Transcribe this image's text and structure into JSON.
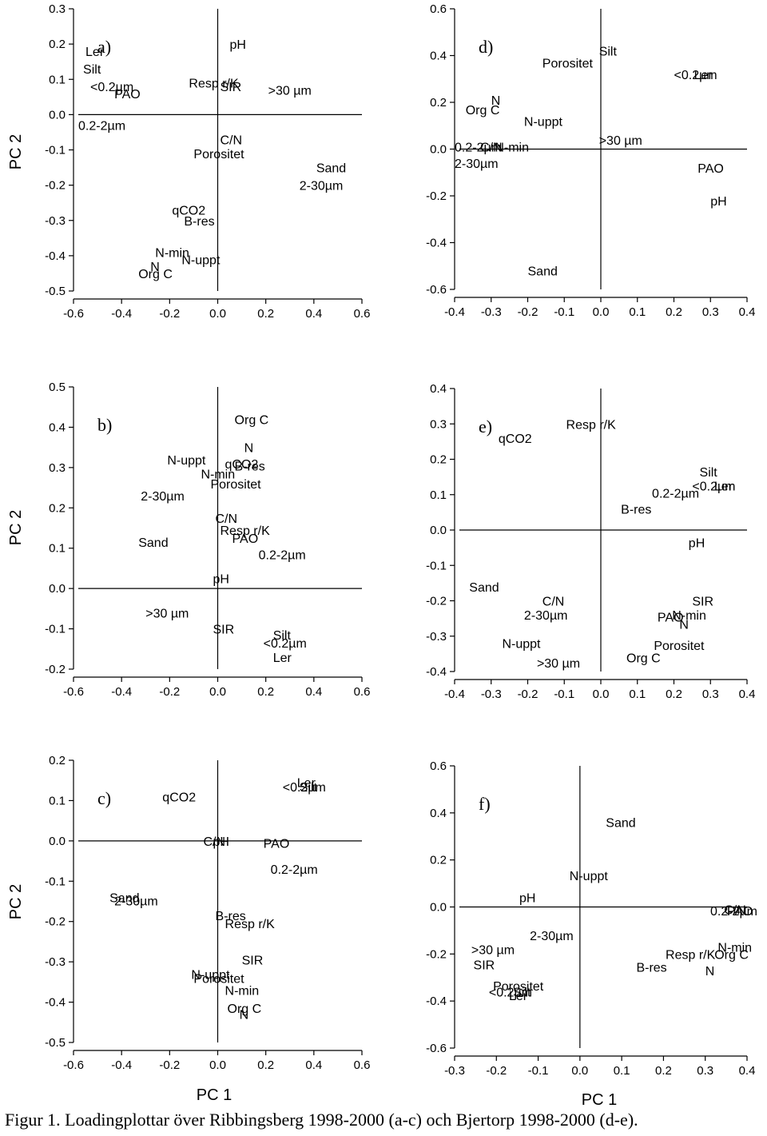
{
  "caption": "Figur 1. Loadingplottar över Ribbingsberg 1998-2000 (a-c) och Bjertorp 1998-2000 (d-e).",
  "axis_titles": {
    "y": "PC 2",
    "x": "PC 1"
  },
  "chart_data": [
    {
      "panel": "a)",
      "type": "scatter",
      "xlim": [
        -0.6,
        0.6
      ],
      "ylim": [
        -0.5,
        0.3
      ],
      "xticks": [
        "-0.6",
        "-0.4",
        "-0.2",
        "0.0",
        "0.2",
        "0.4",
        "0.6"
      ],
      "yticks": [
        "0.3",
        "0.2",
        "0.1",
        "0.0",
        "-0.1",
        "-0.2",
        "-0.3",
        "-0.4",
        "-0.5"
      ],
      "points": [
        {
          "label": "Ler",
          "x": -0.55,
          "y": 0.18
        },
        {
          "label": "Silt",
          "x": -0.56,
          "y": 0.13
        },
        {
          "label": "<0.2µm",
          "x": -0.53,
          "y": 0.08
        },
        {
          "label": "PAO",
          "x": -0.43,
          "y": 0.06
        },
        {
          "label": "pH",
          "x": 0.05,
          "y": 0.2
        },
        {
          "label": "Resp r/K",
          "x": -0.12,
          "y": 0.09
        },
        {
          "label": "SIR",
          "x": 0.01,
          "y": 0.08
        },
        {
          "label": ">30 µm",
          "x": 0.21,
          "y": 0.07
        },
        {
          "label": "0.2-2µm",
          "x": -0.58,
          "y": -0.03
        },
        {
          "label": "C/N",
          "x": 0.01,
          "y": -0.07
        },
        {
          "label": "Porositet",
          "x": -0.1,
          "y": -0.11
        },
        {
          "label": "Sand",
          "x": 0.41,
          "y": -0.15
        },
        {
          "label": "2-30µm",
          "x": 0.34,
          "y": -0.2
        },
        {
          "label": "qCO2",
          "x": -0.19,
          "y": -0.27
        },
        {
          "label": "B-res",
          "x": -0.14,
          "y": -0.3
        },
        {
          "label": "N-min",
          "x": -0.26,
          "y": -0.39
        },
        {
          "label": "N-uppt",
          "x": -0.15,
          "y": -0.41
        },
        {
          "label": "N",
          "x": -0.28,
          "y": -0.43
        },
        {
          "label": "Org C",
          "x": -0.33,
          "y": -0.45
        }
      ]
    },
    {
      "panel": "d)",
      "type": "scatter",
      "xlim": [
        -0.4,
        0.4
      ],
      "ylim": [
        -0.6,
        0.6
      ],
      "xticks": [
        "-0.4",
        "-0.3",
        "-0.2",
        "-0.1",
        "0.0",
        "0.1",
        "0.2",
        "0.3",
        "0.4"
      ],
      "yticks": [
        "0.6",
        "0.4",
        "0.2",
        "0.0",
        "-0.2",
        "-0.4",
        "-0.6"
      ],
      "points": [
        {
          "label": "Silt",
          "x": -0.005,
          "y": 0.42
        },
        {
          "label": "Porositet",
          "x": -0.16,
          "y": 0.37
        },
        {
          "label": "<0.2µm",
          "x": 0.2,
          "y": 0.32
        },
        {
          "label": "Ler",
          "x": 0.255,
          "y": 0.32
        },
        {
          "label": "N",
          "x": -0.3,
          "y": 0.21
        },
        {
          "label": "Org C",
          "x": -0.37,
          "y": 0.17
        },
        {
          "label": "N-uppt",
          "x": -0.21,
          "y": 0.12
        },
        {
          "label": ">30 µm",
          "x": -0.005,
          "y": 0.04
        },
        {
          "label": "0.2-2µm",
          "x": -0.4,
          "y": 0.01
        },
        {
          "label": "C/N",
          "x": -0.33,
          "y": 0.01
        },
        {
          "label": "N-min",
          "x": -0.29,
          "y": 0.01
        },
        {
          "label": "2-30µm",
          "x": -0.4,
          "y": -0.06
        },
        {
          "label": "PAO",
          "x": 0.265,
          "y": -0.08
        },
        {
          "label": "pH",
          "x": 0.3,
          "y": -0.22
        },
        {
          "label": "Sand",
          "x": -0.2,
          "y": -0.52
        }
      ]
    },
    {
      "panel": "b)",
      "type": "scatter",
      "xlim": [
        -0.6,
        0.6
      ],
      "ylim": [
        -0.2,
        0.5
      ],
      "xticks": [
        "-0.6",
        "-0.4",
        "-0.2",
        "0.0",
        "0.2",
        "0.4",
        "0.6"
      ],
      "yticks": [
        "0.5",
        "0.4",
        "0.3",
        "0.2",
        "0.1",
        "0.0",
        "-0.1",
        "-0.2"
      ],
      "points": [
        {
          "label": "Org C",
          "x": 0.07,
          "y": 0.42
        },
        {
          "label": "N",
          "x": 0.11,
          "y": 0.35
        },
        {
          "label": "N-uppt",
          "x": -0.21,
          "y": 0.32
        },
        {
          "label": "qCO2",
          "x": 0.03,
          "y": 0.31
        },
        {
          "label": "B-res",
          "x": 0.07,
          "y": 0.305
        },
        {
          "label": "N-min",
          "x": -0.07,
          "y": 0.285
        },
        {
          "label": "Porositet",
          "x": -0.03,
          "y": 0.26
        },
        {
          "label": "2-30µm",
          "x": -0.32,
          "y": 0.23
        },
        {
          "label": "C/N",
          "x": -0.01,
          "y": 0.175
        },
        {
          "label": "Resp r/K",
          "x": 0.01,
          "y": 0.145
        },
        {
          "label": "PAO",
          "x": 0.06,
          "y": 0.125
        },
        {
          "label": "Sand",
          "x": -0.33,
          "y": 0.115
        },
        {
          "label": "0.2-2µm",
          "x": 0.17,
          "y": 0.085
        },
        {
          "label": "pH",
          "x": -0.02,
          "y": 0.025
        },
        {
          "label": ">30 µm",
          "x": -0.3,
          "y": -0.06
        },
        {
          "label": "SIR",
          "x": -0.02,
          "y": -0.1
        },
        {
          "label": "Silt",
          "x": 0.23,
          "y": -0.115
        },
        {
          "label": "<0.2µm",
          "x": 0.19,
          "y": -0.135
        },
        {
          "label": "Ler",
          "x": 0.23,
          "y": -0.17
        }
      ]
    },
    {
      "panel": "e)",
      "type": "scatter",
      "xlim": [
        -0.4,
        0.4
      ],
      "ylim": [
        -0.4,
        0.4
      ],
      "xticks": [
        "-0.4",
        "-0.3",
        "-0.2",
        "-0.1",
        "0.0",
        "0.1",
        "0.2",
        "0.3",
        "0.4"
      ],
      "yticks": [
        "0.4",
        "0.3",
        "0.2",
        "0.1",
        "0.0",
        "-0.1",
        "-0.2",
        "-0.3",
        "-0.4"
      ],
      "points": [
        {
          "label": "Resp r/K",
          "x": -0.095,
          "y": 0.3
        },
        {
          "label": "qCO2",
          "x": -0.28,
          "y": 0.26
        },
        {
          "label": "Silt",
          "x": 0.27,
          "y": 0.165
        },
        {
          "label": "<0.2µm",
          "x": 0.25,
          "y": 0.125
        },
        {
          "label": "Ler",
          "x": 0.31,
          "y": 0.125
        },
        {
          "label": "0.2-2µm",
          "x": 0.14,
          "y": 0.105
        },
        {
          "label": "B-res",
          "x": 0.055,
          "y": 0.06
        },
        {
          "label": "pH",
          "x": 0.24,
          "y": -0.035
        },
        {
          "label": "Sand",
          "x": -0.36,
          "y": -0.16
        },
        {
          "label": "C/N",
          "x": -0.16,
          "y": -0.2
        },
        {
          "label": "SIR",
          "x": 0.25,
          "y": -0.2
        },
        {
          "label": "2-30µm",
          "x": -0.21,
          "y": -0.24
        },
        {
          "label": "PAO",
          "x": 0.155,
          "y": -0.245
        },
        {
          "label": "N-min",
          "x": 0.195,
          "y": -0.24
        },
        {
          "label": "N",
          "x": 0.215,
          "y": -0.265
        },
        {
          "label": "N-uppt",
          "x": -0.27,
          "y": -0.32
        },
        {
          "label": "Porositet",
          "x": 0.145,
          "y": -0.325
        },
        {
          "label": ">30 µm",
          "x": -0.175,
          "y": -0.375
        },
        {
          "label": "Org C",
          "x": 0.07,
          "y": -0.36
        }
      ]
    },
    {
      "panel": "c)",
      "type": "scatter",
      "xlim": [
        -0.6,
        0.6
      ],
      "ylim": [
        -0.5,
        0.2
      ],
      "xticks": [
        "-0.6",
        "-0.4",
        "-0.2",
        "0.0",
        "0.2",
        "0.4",
        "0.6"
      ],
      "yticks": [
        "0.2",
        "0.1",
        "0.0",
        "-0.1",
        "-0.2",
        "-0.3",
        "-0.4",
        "-0.5"
      ],
      "points": [
        {
          "label": "qCO2",
          "x": -0.23,
          "y": 0.11
        },
        {
          "label": "Ler",
          "x": 0.33,
          "y": 0.145
        },
        {
          "label": "<0.2µm",
          "x": 0.27,
          "y": 0.135
        },
        {
          "label": "Silt",
          "x": 0.34,
          "y": 0.135
        },
        {
          "label": "C/N",
          "x": -0.06,
          "y": 0.0
        },
        {
          "label": "pH",
          "x": -0.02,
          "y": 0.0
        },
        {
          "label": "PAO",
          "x": 0.19,
          "y": -0.005
        },
        {
          "label": "0.2-2µm",
          "x": 0.22,
          "y": -0.07
        },
        {
          "label": "Sand",
          "x": -0.45,
          "y": -0.14
        },
        {
          "label": "2-30µm",
          "x": -0.43,
          "y": -0.148
        },
        {
          "label": "B-res",
          "x": -0.01,
          "y": -0.185
        },
        {
          "label": "Resp r/K",
          "x": 0.03,
          "y": -0.205
        },
        {
          "label": "SIR",
          "x": 0.1,
          "y": -0.295
        },
        {
          "label": "N-uppt",
          "x": -0.11,
          "y": -0.33
        },
        {
          "label": "Porositet",
          "x": -0.1,
          "y": -0.34
        },
        {
          "label": "N-min",
          "x": 0.03,
          "y": -0.37
        },
        {
          "label": "Org C",
          "x": 0.04,
          "y": -0.415
        },
        {
          "label": "N",
          "x": 0.09,
          "y": -0.43
        }
      ]
    },
    {
      "panel": "f)",
      "type": "scatter",
      "xlim": [
        -0.3,
        0.4
      ],
      "ylim": [
        -0.6,
        0.6
      ],
      "xticks": [
        "-0.3",
        "-0.2",
        "-0.1",
        "0.0",
        "0.1",
        "0.2",
        "0.3",
        "0.4"
      ],
      "yticks": [
        "0.6",
        "0.4",
        "0.2",
        "0.0",
        "-0.2",
        "-0.4",
        "-0.6"
      ],
      "points": [
        {
          "label": "Sand",
          "x": 0.062,
          "y": 0.36
        },
        {
          "label": "N-uppt",
          "x": -0.025,
          "y": 0.135
        },
        {
          "label": "pH",
          "x": -0.145,
          "y": 0.04
        },
        {
          "label": "0.2-2µm",
          "x": 0.312,
          "y": -0.015
        },
        {
          "label": "C/N",
          "x": 0.345,
          "y": -0.01
        },
        {
          "label": "PAO",
          "x": 0.352,
          "y": -0.015
        },
        {
          "label": "2-30µm",
          "x": -0.12,
          "y": -0.12
        },
        {
          "label": "N-min",
          "x": 0.33,
          "y": -0.17
        },
        {
          "label": ">30 µm",
          "x": -0.26,
          "y": -0.18
        },
        {
          "label": "Resp r/K",
          "x": 0.205,
          "y": -0.2
        },
        {
          "label": "Org C",
          "x": 0.322,
          "y": -0.2
        },
        {
          "label": "SIR",
          "x": -0.255,
          "y": -0.245
        },
        {
          "label": "B-res",
          "x": 0.135,
          "y": -0.255
        },
        {
          "label": "N",
          "x": 0.3,
          "y": -0.27
        },
        {
          "label": "Porositet",
          "x": -0.208,
          "y": -0.335
        },
        {
          "label": "<0.2µm",
          "x": -0.218,
          "y": -0.36
        },
        {
          "label": "Ler",
          "x": -0.17,
          "y": -0.375
        },
        {
          "label": "Silt",
          "x": -0.16,
          "y": -0.36
        }
      ]
    }
  ]
}
